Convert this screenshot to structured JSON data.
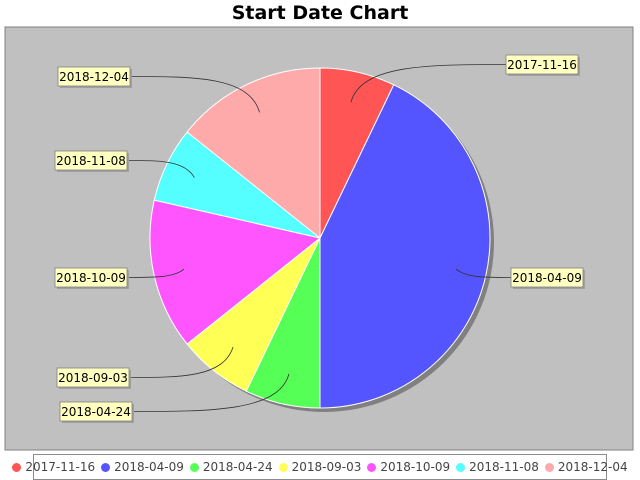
{
  "chart_data": {
    "type": "pie",
    "title": "Start Date Chart",
    "labels": [
      "2017-11-16",
      "2018-04-09",
      "2018-04-24",
      "2018-09-03",
      "2018-10-09",
      "2018-11-08",
      "2018-12-04"
    ],
    "values": [
      1,
      6,
      1,
      1,
      2,
      1,
      2
    ],
    "colors": [
      "#ff5555",
      "#5555ff",
      "#55ff55",
      "#ffff55",
      "#ff55ff",
      "#55ffff",
      "#ffaaaa"
    ],
    "legend_position": "bottom",
    "plot_background": "#c0c0c0"
  }
}
